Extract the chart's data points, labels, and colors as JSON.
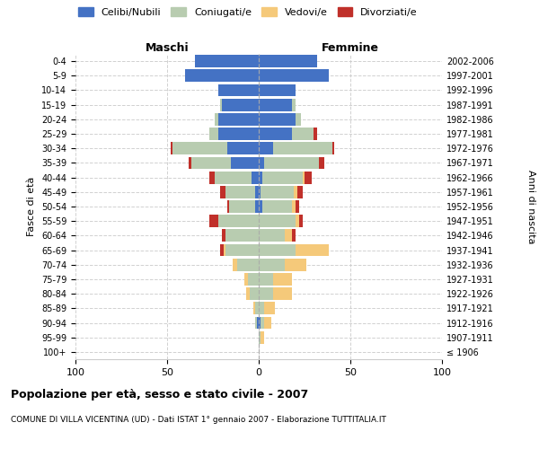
{
  "age_groups": [
    "100+",
    "95-99",
    "90-94",
    "85-89",
    "80-84",
    "75-79",
    "70-74",
    "65-69",
    "60-64",
    "55-59",
    "50-54",
    "45-49",
    "40-44",
    "35-39",
    "30-34",
    "25-29",
    "20-24",
    "15-19",
    "10-14",
    "5-9",
    "0-4"
  ],
  "birth_years": [
    "≤ 1906",
    "1907-1911",
    "1912-1916",
    "1917-1921",
    "1922-1926",
    "1927-1931",
    "1932-1936",
    "1937-1941",
    "1942-1946",
    "1947-1951",
    "1952-1956",
    "1957-1961",
    "1962-1966",
    "1967-1971",
    "1972-1976",
    "1977-1981",
    "1982-1986",
    "1987-1991",
    "1992-1996",
    "1997-2001",
    "2002-2006"
  ],
  "male": {
    "celibi": [
      0,
      0,
      1,
      0,
      0,
      0,
      0,
      0,
      0,
      0,
      2,
      2,
      4,
      15,
      17,
      22,
      22,
      20,
      22,
      40,
      35
    ],
    "coniugati": [
      0,
      0,
      1,
      2,
      5,
      6,
      12,
      18,
      18,
      22,
      14,
      16,
      20,
      22,
      30,
      5,
      2,
      1,
      0,
      0,
      0
    ],
    "vedovi": [
      0,
      0,
      0,
      1,
      2,
      2,
      2,
      1,
      0,
      0,
      0,
      0,
      0,
      0,
      0,
      0,
      0,
      0,
      0,
      0,
      0
    ],
    "divorziati": [
      0,
      0,
      0,
      0,
      0,
      0,
      0,
      2,
      2,
      5,
      1,
      3,
      3,
      1,
      1,
      0,
      0,
      0,
      0,
      0,
      0
    ]
  },
  "female": {
    "nubili": [
      0,
      0,
      1,
      0,
      0,
      0,
      0,
      0,
      0,
      0,
      2,
      1,
      2,
      3,
      8,
      18,
      20,
      18,
      20,
      38,
      32
    ],
    "coniugate": [
      0,
      1,
      2,
      3,
      8,
      8,
      14,
      20,
      14,
      20,
      16,
      18,
      22,
      30,
      32,
      12,
      3,
      2,
      0,
      0,
      0
    ],
    "vedove": [
      0,
      2,
      4,
      6,
      10,
      10,
      12,
      18,
      4,
      2,
      2,
      2,
      1,
      0,
      0,
      0,
      0,
      0,
      0,
      0,
      0
    ],
    "divorziate": [
      0,
      0,
      0,
      0,
      0,
      0,
      0,
      0,
      2,
      2,
      2,
      3,
      4,
      3,
      1,
      2,
      0,
      0,
      0,
      0,
      0
    ]
  },
  "colors": {
    "celibi": "#4472C4",
    "coniugati": "#B8CCB0",
    "vedovi": "#F5C97A",
    "divorziati": "#C0302A"
  },
  "xlim": 100,
  "title": "Popolazione per età, sesso e stato civile - 2007",
  "subtitle": "COMUNE DI VILLA VICENTINA (UD) - Dati ISTAT 1° gennaio 2007 - Elaborazione TUTTITALIA.IT",
  "xlabel_left": "Maschi",
  "xlabel_right": "Femmine",
  "ylabel_left": "Fasce di età",
  "ylabel_right": "Anni di nascita",
  "bg_color": "#FFFFFF",
  "grid_color": "#CCCCCC"
}
